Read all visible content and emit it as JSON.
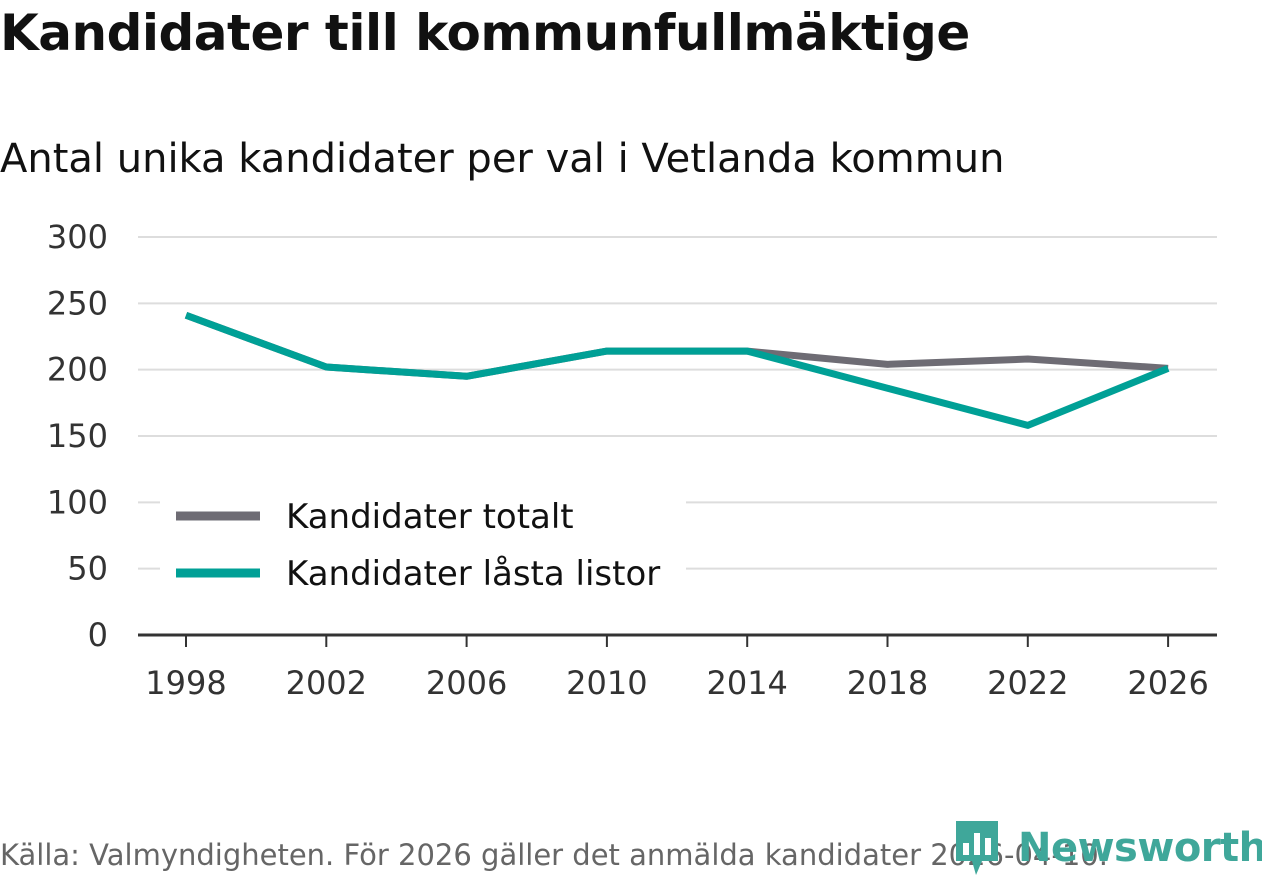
{
  "title": "Kandidater till kommunfullmäktige",
  "subtitle": "Antal unika kandidater per val i Vetlanda kommun",
  "source": "Källa: Valmyndigheten. För 2026 gäller det anmälda kandidater 2026-04-10.",
  "brand": {
    "name": "Newsworthy",
    "color": "#3fa79a",
    "icon": "bar-chart-icon"
  },
  "chart_data": {
    "type": "line",
    "title": "Kandidater till kommunfullmäktige",
    "subtitle": "Antal unika kandidater per val i Vetlanda kommun",
    "xlabel": "",
    "ylabel": "",
    "x": [
      "1998",
      "2002",
      "2006",
      "2010",
      "2014",
      "2018",
      "2022",
      "2026"
    ],
    "ylim": [
      0,
      300
    ],
    "yticks": [
      "0",
      "50",
      "100",
      "150",
      "200",
      "250",
      "300"
    ],
    "grid": true,
    "legend_position": "bottom-left",
    "series": [
      {
        "name": "Kandidater totalt",
        "color": "#6e6c74",
        "values": [
          241,
          202,
          195,
          214,
          214,
          204,
          208,
          201
        ]
      },
      {
        "name": "Kandidater låsta listor",
        "color": "#00a096",
        "values": [
          241,
          202,
          195,
          214,
          214,
          186,
          158,
          201
        ]
      }
    ]
  }
}
